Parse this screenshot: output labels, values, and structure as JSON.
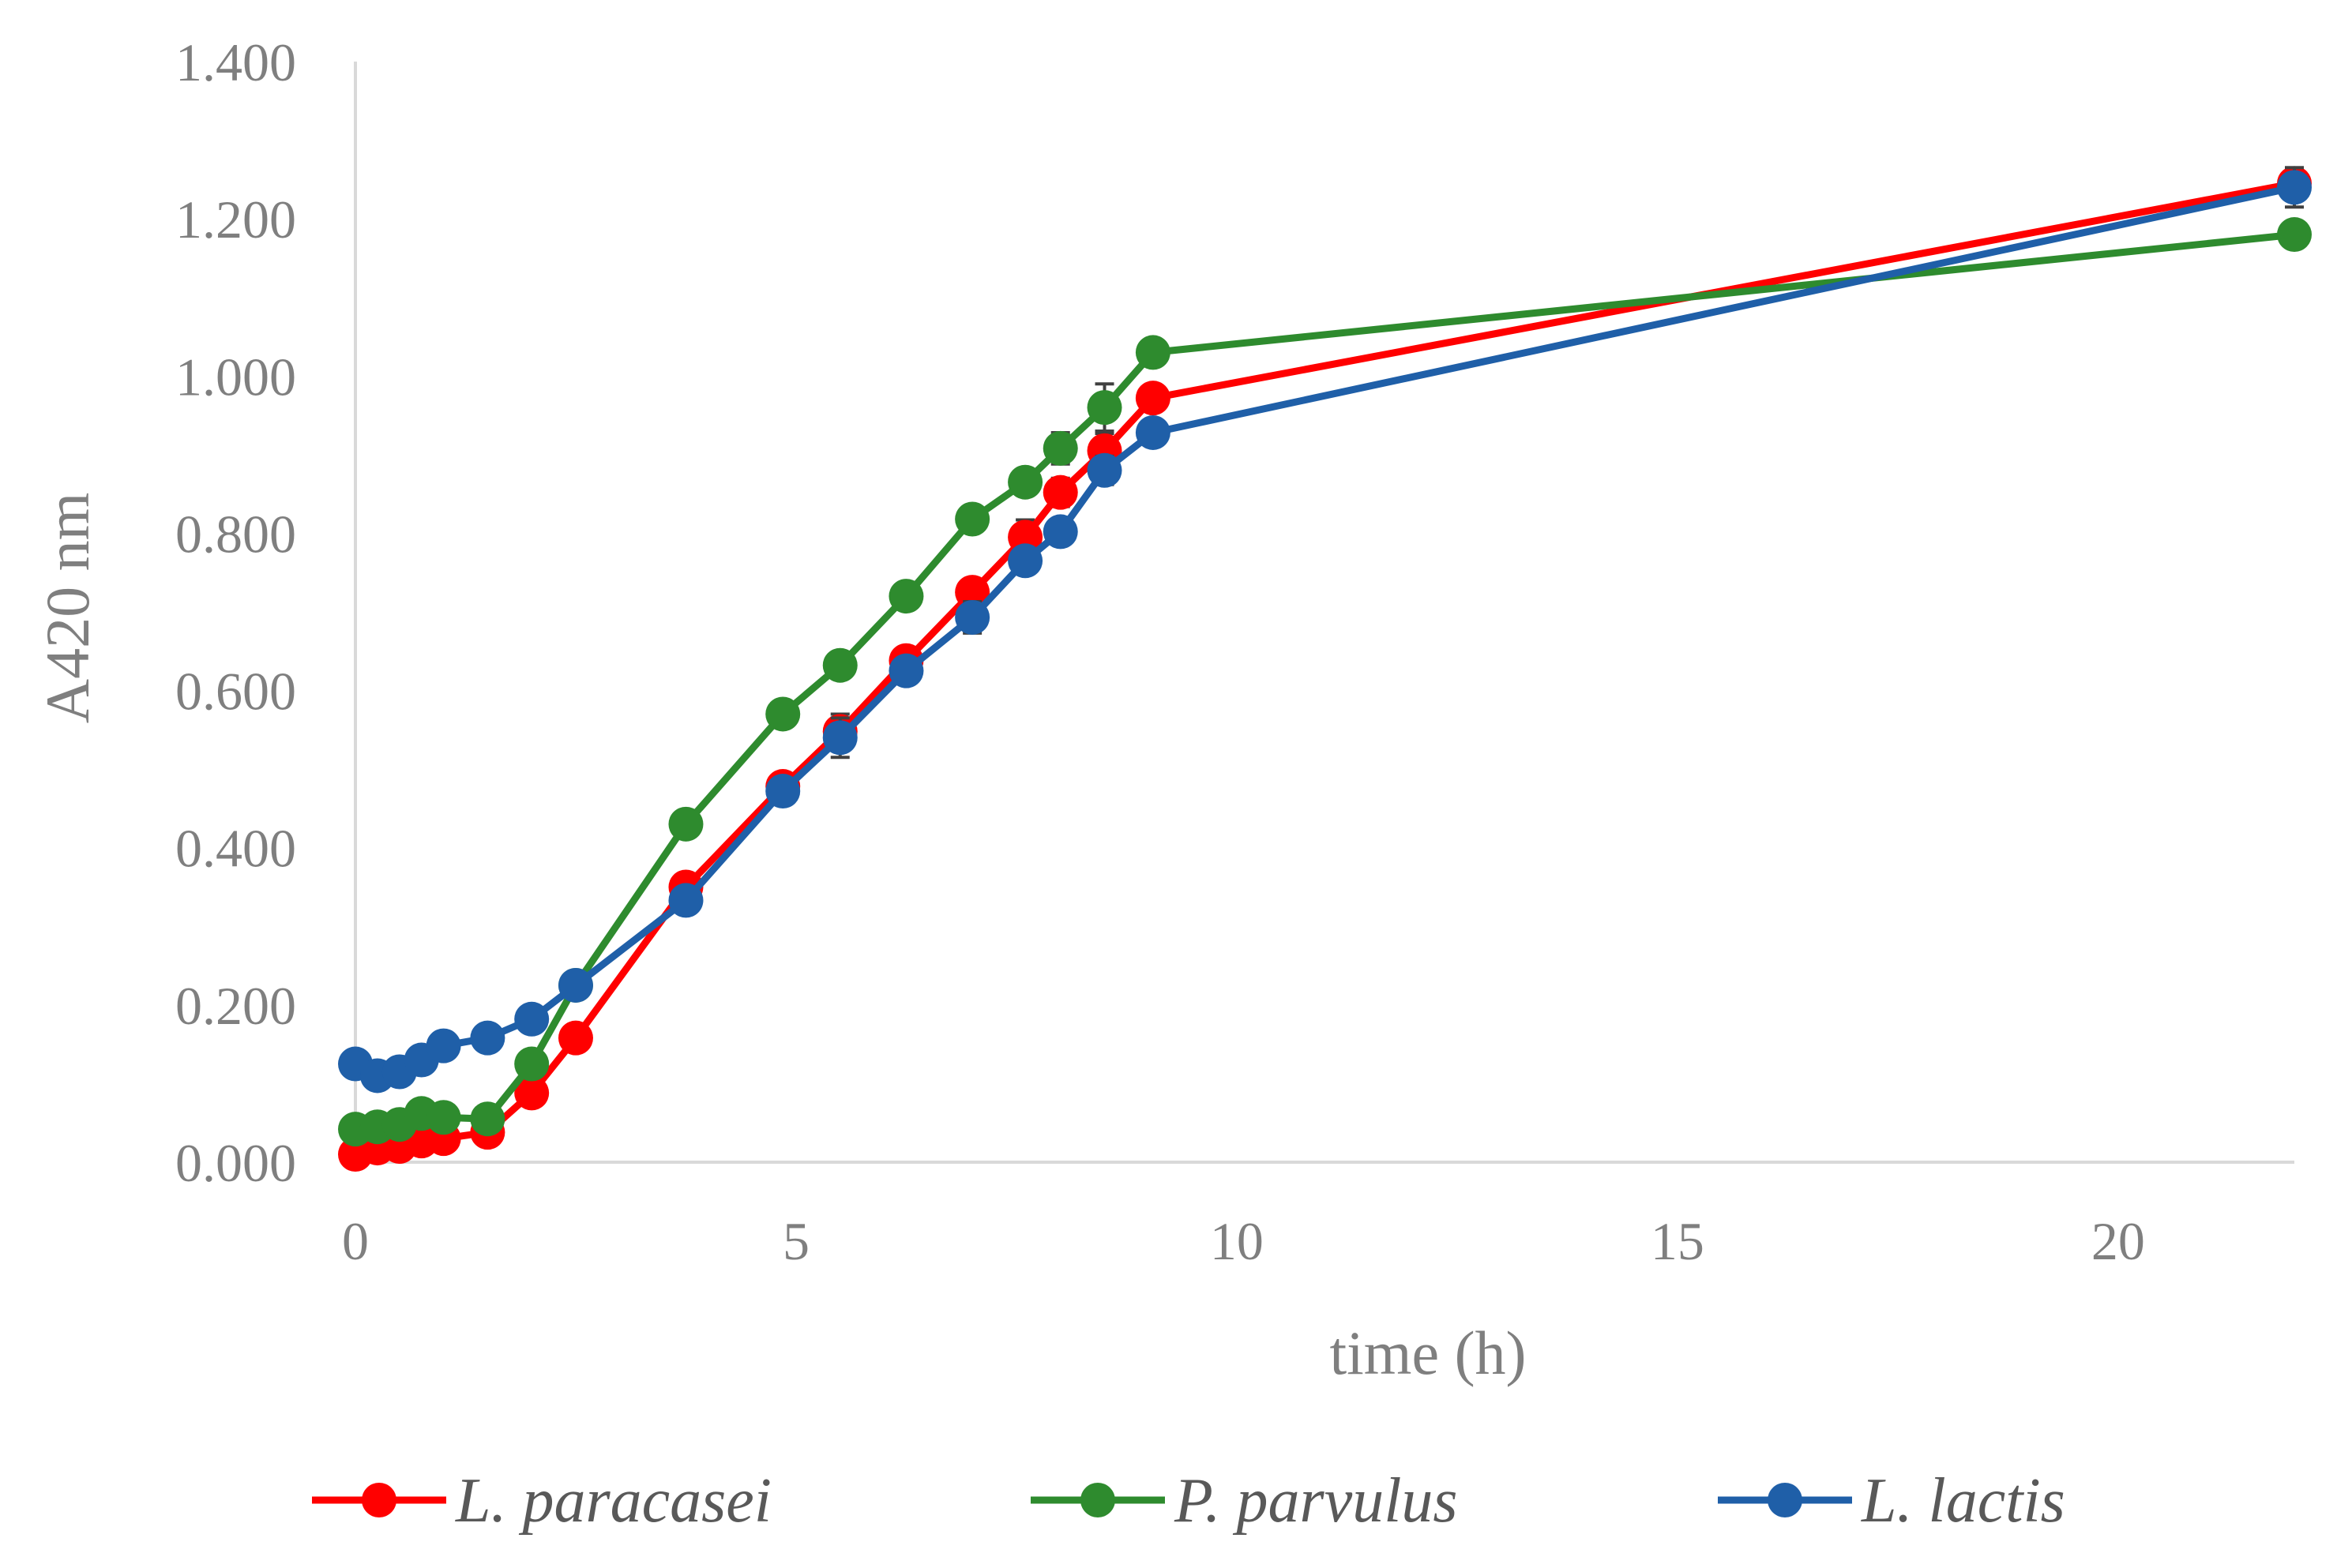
{
  "chart_data": {
    "type": "line",
    "xlabel": "time (h)",
    "ylabel": "A420 nm",
    "xlim": [
      0,
      22
    ],
    "ylim": [
      0,
      1.4
    ],
    "xticks": [
      0,
      5,
      10,
      15,
      20
    ],
    "xtick_labels": [
      "0",
      "5",
      "10",
      "15",
      "20"
    ],
    "yticks": [
      0,
      0.2,
      0.4,
      0.6,
      0.8,
      1.0,
      1.2,
      1.4
    ],
    "ytick_labels": [
      "0.000",
      "0.200",
      "0.400",
      "0.600",
      "0.800",
      "1.000",
      "1.200",
      "1.400"
    ],
    "grid": false,
    "legend": "bottom",
    "series": [
      {
        "name": "L. paracasei",
        "color": "#ff0000",
        "x": [
          0,
          0.25,
          0.5,
          0.75,
          1,
          1.5,
          2,
          2.5,
          3.75,
          4.85,
          5.5,
          6.25,
          7,
          7.6,
          8,
          8.5,
          9.05,
          22
        ],
        "y": [
          0.01,
          0.018,
          0.02,
          0.027,
          0.03,
          0.038,
          0.088,
          0.158,
          0.35,
          0.478,
          0.548,
          0.638,
          0.725,
          0.795,
          0.852,
          0.905,
          0.972,
          1.245
        ],
        "err": [
          0.004,
          0.004,
          0.004,
          0.004,
          0.004,
          0.004,
          0.006,
          0.008,
          0.01,
          0.012,
          0.022,
          0.012,
          0.014,
          0.022,
          0.018,
          0.022,
          0.014,
          0.02
        ]
      },
      {
        "name": "P. parvulus",
        "color": "#2e8b2e",
        "x": [
          0,
          0.25,
          0.5,
          0.75,
          1,
          1.5,
          2,
          2.5,
          3.75,
          4.85,
          5.5,
          6.25,
          7,
          7.6,
          8,
          8.5,
          9.05,
          22
        ],
        "y": [
          0.042,
          0.045,
          0.048,
          0.062,
          0.057,
          0.055,
          0.125,
          0.225,
          0.43,
          0.57,
          0.632,
          0.72,
          0.818,
          0.865,
          0.908,
          0.96,
          1.03,
          1.18
        ],
        "err": [
          0.004,
          0.004,
          0.004,
          0.006,
          0.005,
          0.005,
          0.008,
          0.008,
          0.01,
          0.01,
          0.012,
          0.012,
          0.012,
          0.014,
          0.02,
          0.03,
          0.016,
          0.01
        ]
      },
      {
        "name": "L. lactis",
        "color": "#1f5fa8",
        "x": [
          0,
          0.25,
          0.5,
          0.75,
          1,
          1.5,
          2,
          2.5,
          3.75,
          4.85,
          5.5,
          6.25,
          7,
          7.6,
          8,
          8.5,
          9.05,
          22
        ],
        "y": [
          0.125,
          0.11,
          0.115,
          0.13,
          0.148,
          0.158,
          0.182,
          0.225,
          0.333,
          0.472,
          0.54,
          0.625,
          0.693,
          0.765,
          0.802,
          0.88,
          0.928,
          1.24
        ],
        "err": [
          0.006,
          0.012,
          0.008,
          0.008,
          0.008,
          0.006,
          0.008,
          0.008,
          0.012,
          0.012,
          0.025,
          0.014,
          0.02,
          0.016,
          0.012,
          0.018,
          0.012,
          0.025
        ]
      }
    ]
  }
}
